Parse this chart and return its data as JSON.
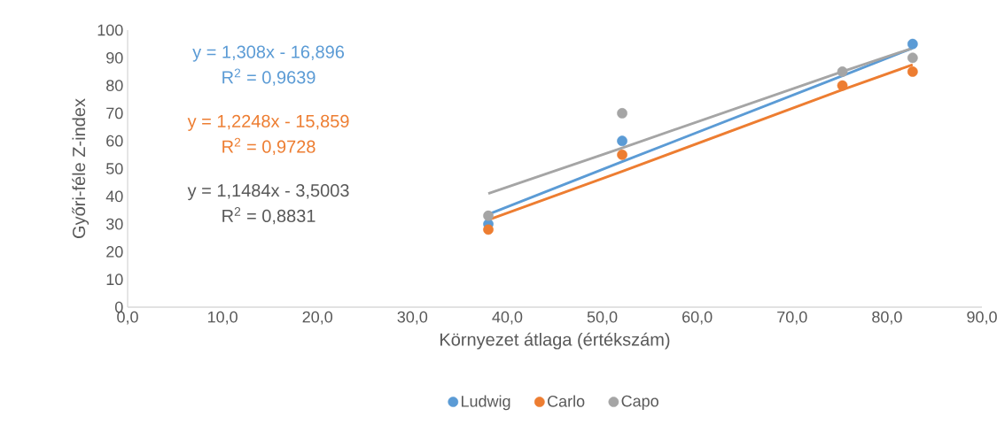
{
  "chart_data": {
    "type": "scatter",
    "xlabel": "Környezet átlaga (értékszám)",
    "ylabel": "Győri-féle Z-index",
    "xlim": [
      0,
      90
    ],
    "ylim": [
      0,
      100
    ],
    "xticks": [
      {
        "value": 0,
        "label": "0,0"
      },
      {
        "value": 10,
        "label": "10,0"
      },
      {
        "value": 20,
        "label": "20,0"
      },
      {
        "value": 30,
        "label": "30,0"
      },
      {
        "value": 40,
        "label": "40,0"
      },
      {
        "value": 50,
        "label": "50,0"
      },
      {
        "value": 60,
        "label": "60,0"
      },
      {
        "value": 70,
        "label": "70,0"
      },
      {
        "value": 80,
        "label": "80,0"
      },
      {
        "value": 90,
        "label": "90,0"
      }
    ],
    "yticks": [
      0,
      10,
      20,
      30,
      40,
      50,
      60,
      70,
      80,
      90,
      100
    ],
    "x": [
      38.0,
      52.1,
      75.3,
      82.7
    ],
    "series": [
      {
        "name": "Ludwig",
        "color": "#5b9bd5",
        "values": [
          30,
          60,
          null,
          95
        ],
        "marker": "circle"
      },
      {
        "name": "Carlo",
        "color": "#ed7d31",
        "values": [
          28,
          55,
          80,
          85
        ],
        "marker": "circle"
      },
      {
        "name": "Capo",
        "color": "#a5a5a5",
        "values": [
          33,
          70,
          85,
          90
        ],
        "marker": "circle"
      },
      {
        "type": "line",
        "color": "#5b9bd5",
        "values": [
          33.5,
          52.5,
          83.5,
          93.5
        ],
        "marker": "none"
      },
      {
        "type": "line",
        "color": "#ed7d31",
        "values": [
          31.5,
          49,
          78.5,
          87.5
        ],
        "marker": "none"
      },
      {
        "type": "line",
        "color": "#a5a5a5",
        "values": [
          41,
          57.5,
          85,
          93.5
        ],
        "marker": "none"
      }
    ],
    "annotations": [
      "y = 1,308x - 16,896",
      "R$^{2}$ = 0,9639",
      "y = 1,2248x - 15,859",
      "R$^{2}$ = 0,9728",
      "y = 1,1484x - 3,5003",
      "R$^{2}$ = 0,8831"
    ],
    "grid": false,
    "legend": "bottom"
  }
}
